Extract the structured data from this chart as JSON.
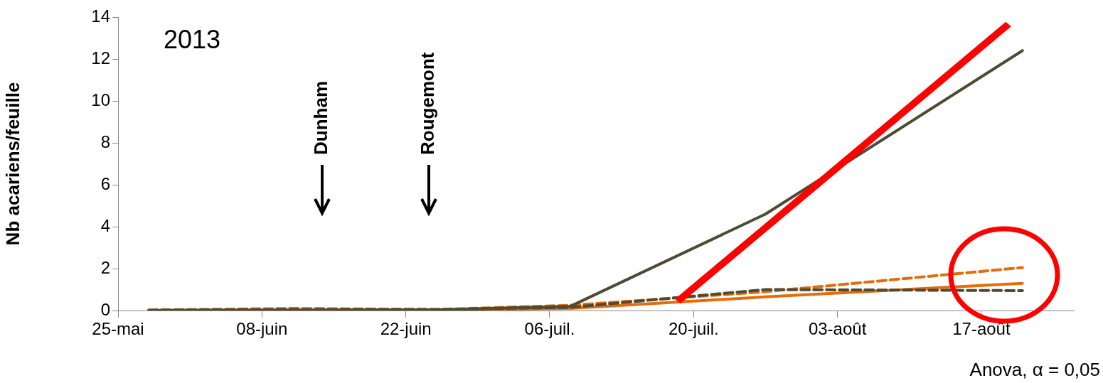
{
  "chart_data": {
    "type": "line",
    "ylabel": "Nb acariens/feuille",
    "xlim": [
      "2013-05-25",
      "2013-08-26"
    ],
    "xticks": [
      {
        "value": "2013-05-25",
        "label": "25-mai"
      },
      {
        "value": "2013-06-08",
        "label": "08-juin"
      },
      {
        "value": "2013-06-22",
        "label": "22-juin"
      },
      {
        "value": "2013-07-06",
        "label": "06-juil."
      },
      {
        "value": "2013-07-20",
        "label": "20-juil."
      },
      {
        "value": "2013-08-03",
        "label": "03-août"
      },
      {
        "value": "2013-08-17",
        "label": "17-août"
      }
    ],
    "ylim": [
      0,
      14
    ],
    "yticks": [
      0,
      2,
      4,
      6,
      8,
      10,
      12,
      14
    ],
    "grid": false,
    "legend": false,
    "marker": "none",
    "x": [
      "2013-05-28",
      "2013-06-11",
      "2013-06-25",
      "2013-07-08",
      "2013-07-27",
      "2013-08-21"
    ],
    "series": [
      {
        "color": "#4f4a32",
        "line_style": "solid",
        "values": [
          0,
          0.02,
          0.03,
          0.2,
          4.6,
          12.4
        ]
      },
      {
        "color": "#4f4a32",
        "line_style": "dashed",
        "values": [
          0.02,
          0.05,
          0.05,
          0.15,
          1.0,
          0.95
        ]
      },
      {
        "color": "#e46c0a",
        "line_style": "dashed",
        "values": [
          0.02,
          0.1,
          0.05,
          0.25,
          0.9,
          2.05
        ]
      },
      {
        "color": "#e46c0a",
        "line_style": "solid",
        "values": [
          0,
          0.02,
          0.03,
          0.1,
          0.65,
          1.3
        ]
      }
    ],
    "annotations": [
      "2013",
      "Dunham",
      "Rougemont",
      "Anova, α = 0,05"
    ]
  }
}
